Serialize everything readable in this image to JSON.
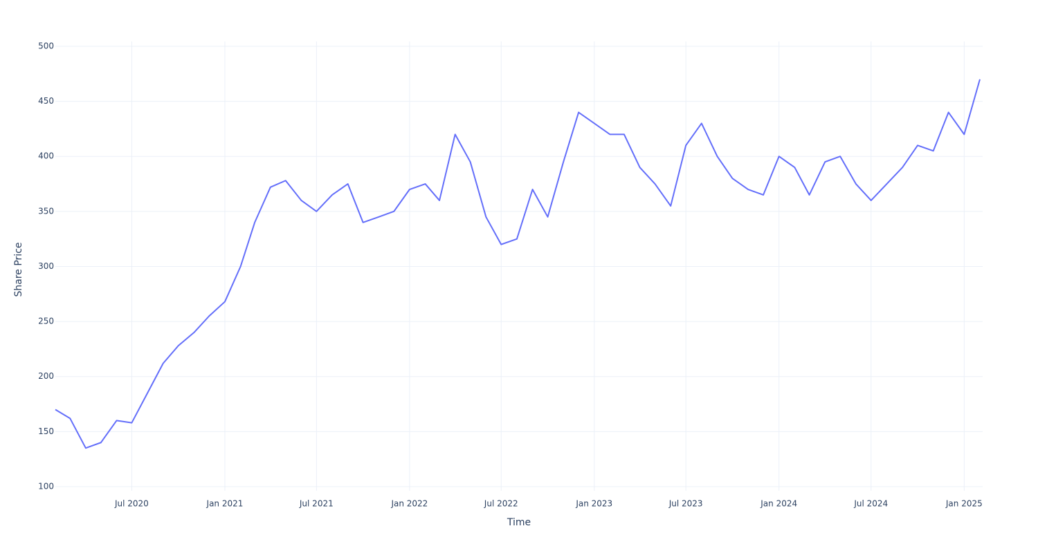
{
  "chart_data": {
    "type": "line",
    "x_label": "Time",
    "y_label": "Share Price",
    "x": [
      "2020-02",
      "2020-03",
      "2020-04",
      "2020-05",
      "2020-06",
      "2020-07",
      "2020-08",
      "2020-09",
      "2020-10",
      "2020-11",
      "2020-12",
      "2021-01",
      "2021-02",
      "2021-03",
      "2021-04",
      "2021-05",
      "2021-06",
      "2021-07",
      "2021-08",
      "2021-09",
      "2021-10",
      "2021-11",
      "2021-12",
      "2022-01",
      "2022-02",
      "2022-03",
      "2022-04",
      "2022-05",
      "2022-06",
      "2022-07",
      "2022-08",
      "2022-09",
      "2022-10",
      "2022-11",
      "2022-12",
      "2023-01",
      "2023-02",
      "2023-03",
      "2023-04",
      "2023-05",
      "2023-06",
      "2023-07",
      "2023-08",
      "2023-09",
      "2023-10",
      "2023-11",
      "2023-12",
      "2024-01",
      "2024-02",
      "2024-03",
      "2024-04",
      "2024-05",
      "2024-06",
      "2024-07",
      "2024-08",
      "2024-09",
      "2024-10",
      "2024-11",
      "2024-12",
      "2025-01",
      "2025-02"
    ],
    "series": [
      {
        "color": "#636efa",
        "values": [
          170,
          162,
          135,
          140,
          160,
          158,
          185,
          212,
          228,
          240,
          255,
          268,
          300,
          340,
          372,
          378,
          360,
          350,
          365,
          375,
          340,
          345,
          350,
          370,
          375,
          360,
          420,
          395,
          345,
          320,
          325,
          370,
          345,
          395,
          440,
          430,
          420,
          420,
          390,
          375,
          355,
          410,
          430,
          400,
          380,
          370,
          365,
          400,
          390,
          365,
          395,
          400,
          375,
          360,
          375,
          390,
          410,
          405,
          440,
          420,
          470
        ]
      }
    ],
    "xlim": [
      "2020-02",
      "2025-02"
    ],
    "xticks": [
      {
        "value": "2020-07",
        "label": "Jul 2020"
      },
      {
        "value": "2021-01",
        "label": "Jan 2021"
      },
      {
        "value": "2021-07",
        "label": "Jul 2021"
      },
      {
        "value": "2022-01",
        "label": "Jan 2022"
      },
      {
        "value": "2022-07",
        "label": "Jul 2022"
      },
      {
        "value": "2023-01",
        "label": "Jan 2023"
      },
      {
        "value": "2023-07",
        "label": "Jul 2023"
      },
      {
        "value": "2024-01",
        "label": "Jan 2024"
      },
      {
        "value": "2024-07",
        "label": "Jul 2024"
      },
      {
        "value": "2025-01",
        "label": "Jan 2025"
      }
    ],
    "ylim": [
      96.2,
      504.4
    ],
    "yticks": [
      100,
      150,
      200,
      250,
      300,
      350,
      400,
      450,
      500
    ],
    "grid": true
  }
}
